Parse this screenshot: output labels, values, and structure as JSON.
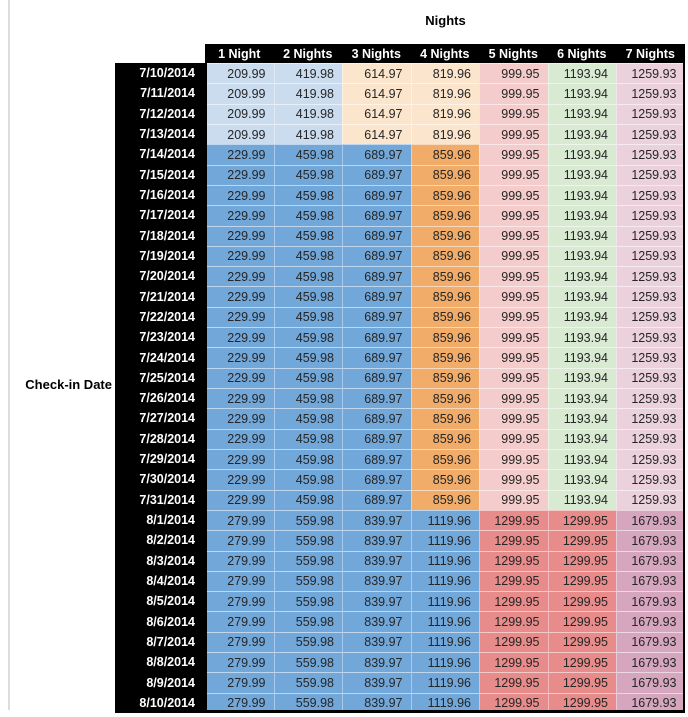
{
  "chart_data": {
    "type": "table",
    "title": "Nights",
    "row_axis_label": "Check-in Date",
    "columns": [
      "1 Night",
      "2 Nights",
      "3 Nights",
      "4 Nights",
      "5 Nights",
      "6 Nights",
      "7 Nights"
    ],
    "header_bg": "#000000",
    "header_text_color": "#ffffff",
    "value_text_color": "#262626",
    "gridline_color": "#dcdcdc",
    "palette": {
      "lb": "#cadcee",
      "mb": "#72a7da",
      "lo": "#fce5cd",
      "mo": "#f2ac69",
      "lr": "#f4cccc",
      "mr": "#e88b8b",
      "lg": "#d9ead3",
      "lp": "#ead1dc",
      "mp": "#d5a6bd"
    },
    "rows": [
      {
        "date": "7/10/2014",
        "values": [
          "209.99",
          "419.98",
          "614.97",
          "819.96",
          "999.95",
          "1193.94",
          "1259.93"
        ],
        "colors": [
          "lb",
          "lb",
          "lo",
          "lo",
          "lr",
          "lg",
          "lp"
        ]
      },
      {
        "date": "7/11/2014",
        "values": [
          "209.99",
          "419.98",
          "614.97",
          "819.96",
          "999.95",
          "1193.94",
          "1259.93"
        ],
        "colors": [
          "lb",
          "lb",
          "lo",
          "lo",
          "lr",
          "lg",
          "lp"
        ]
      },
      {
        "date": "7/12/2014",
        "values": [
          "209.99",
          "419.98",
          "614.97",
          "819.96",
          "999.95",
          "1193.94",
          "1259.93"
        ],
        "colors": [
          "lb",
          "lb",
          "lo",
          "lo",
          "lr",
          "lg",
          "lp"
        ]
      },
      {
        "date": "7/13/2014",
        "values": [
          "209.99",
          "419.98",
          "614.97",
          "819.96",
          "999.95",
          "1193.94",
          "1259.93"
        ],
        "colors": [
          "lb",
          "lb",
          "lo",
          "lo",
          "lr",
          "lg",
          "lp"
        ]
      },
      {
        "date": "7/14/2014",
        "values": [
          "229.99",
          "459.98",
          "689.97",
          "859.96",
          "999.95",
          "1193.94",
          "1259.93"
        ],
        "colors": [
          "mb",
          "mb",
          "mb",
          "mo",
          "lr",
          "lg",
          "lp"
        ]
      },
      {
        "date": "7/15/2014",
        "values": [
          "229.99",
          "459.98",
          "689.97",
          "859.96",
          "999.95",
          "1193.94",
          "1259.93"
        ],
        "colors": [
          "mb",
          "mb",
          "mb",
          "mo",
          "lr",
          "lg",
          "lp"
        ]
      },
      {
        "date": "7/16/2014",
        "values": [
          "229.99",
          "459.98",
          "689.97",
          "859.96",
          "999.95",
          "1193.94",
          "1259.93"
        ],
        "colors": [
          "mb",
          "mb",
          "mb",
          "mo",
          "lr",
          "lg",
          "lp"
        ]
      },
      {
        "date": "7/17/2014",
        "values": [
          "229.99",
          "459.98",
          "689.97",
          "859.96",
          "999.95",
          "1193.94",
          "1259.93"
        ],
        "colors": [
          "mb",
          "mb",
          "mb",
          "mo",
          "lr",
          "lg",
          "lp"
        ]
      },
      {
        "date": "7/18/2014",
        "values": [
          "229.99",
          "459.98",
          "689.97",
          "859.96",
          "999.95",
          "1193.94",
          "1259.93"
        ],
        "colors": [
          "mb",
          "mb",
          "mb",
          "mo",
          "lr",
          "lg",
          "lp"
        ]
      },
      {
        "date": "7/19/2014",
        "values": [
          "229.99",
          "459.98",
          "689.97",
          "859.96",
          "999.95",
          "1193.94",
          "1259.93"
        ],
        "colors": [
          "mb",
          "mb",
          "mb",
          "mo",
          "lr",
          "lg",
          "lp"
        ]
      },
      {
        "date": "7/20/2014",
        "values": [
          "229.99",
          "459.98",
          "689.97",
          "859.96",
          "999.95",
          "1193.94",
          "1259.93"
        ],
        "colors": [
          "mb",
          "mb",
          "mb",
          "mo",
          "lr",
          "lg",
          "lp"
        ]
      },
      {
        "date": "7/21/2014",
        "values": [
          "229.99",
          "459.98",
          "689.97",
          "859.96",
          "999.95",
          "1193.94",
          "1259.93"
        ],
        "colors": [
          "mb",
          "mb",
          "mb",
          "mo",
          "lr",
          "lg",
          "lp"
        ]
      },
      {
        "date": "7/22/2014",
        "values": [
          "229.99",
          "459.98",
          "689.97",
          "859.96",
          "999.95",
          "1193.94",
          "1259.93"
        ],
        "colors": [
          "mb",
          "mb",
          "mb",
          "mo",
          "lr",
          "lg",
          "lp"
        ]
      },
      {
        "date": "7/23/2014",
        "values": [
          "229.99",
          "459.98",
          "689.97",
          "859.96",
          "999.95",
          "1193.94",
          "1259.93"
        ],
        "colors": [
          "mb",
          "mb",
          "mb",
          "mo",
          "lr",
          "lg",
          "lp"
        ]
      },
      {
        "date": "7/24/2014",
        "values": [
          "229.99",
          "459.98",
          "689.97",
          "859.96",
          "999.95",
          "1193.94",
          "1259.93"
        ],
        "colors": [
          "mb",
          "mb",
          "mb",
          "mo",
          "lr",
          "lg",
          "lp"
        ]
      },
      {
        "date": "7/25/2014",
        "values": [
          "229.99",
          "459.98",
          "689.97",
          "859.96",
          "999.95",
          "1193.94",
          "1259.93"
        ],
        "colors": [
          "mb",
          "mb",
          "mb",
          "mo",
          "lr",
          "lg",
          "lp"
        ]
      },
      {
        "date": "7/26/2014",
        "values": [
          "229.99",
          "459.98",
          "689.97",
          "859.96",
          "999.95",
          "1193.94",
          "1259.93"
        ],
        "colors": [
          "mb",
          "mb",
          "mb",
          "mo",
          "lr",
          "lg",
          "lp"
        ]
      },
      {
        "date": "7/27/2014",
        "values": [
          "229.99",
          "459.98",
          "689.97",
          "859.96",
          "999.95",
          "1193.94",
          "1259.93"
        ],
        "colors": [
          "mb",
          "mb",
          "mb",
          "mo",
          "lr",
          "lg",
          "lp"
        ]
      },
      {
        "date": "7/28/2014",
        "values": [
          "229.99",
          "459.98",
          "689.97",
          "859.96",
          "999.95",
          "1193.94",
          "1259.93"
        ],
        "colors": [
          "mb",
          "mb",
          "mb",
          "mo",
          "lr",
          "lg",
          "lp"
        ]
      },
      {
        "date": "7/29/2014",
        "values": [
          "229.99",
          "459.98",
          "689.97",
          "859.96",
          "999.95",
          "1193.94",
          "1259.93"
        ],
        "colors": [
          "mb",
          "mb",
          "mb",
          "mo",
          "lr",
          "lg",
          "lp"
        ]
      },
      {
        "date": "7/30/2014",
        "values": [
          "229.99",
          "459.98",
          "689.97",
          "859.96",
          "999.95",
          "1193.94",
          "1259.93"
        ],
        "colors": [
          "mb",
          "mb",
          "mb",
          "mo",
          "lr",
          "lg",
          "lp"
        ]
      },
      {
        "date": "7/31/2014",
        "values": [
          "229.99",
          "459.98",
          "689.97",
          "859.96",
          "999.95",
          "1193.94",
          "1259.93"
        ],
        "colors": [
          "mb",
          "mb",
          "mb",
          "mo",
          "lr",
          "lg",
          "lp"
        ]
      },
      {
        "date": "8/1/2014",
        "values": [
          "279.99",
          "559.98",
          "839.97",
          "1119.96",
          "1299.95",
          "1299.95",
          "1679.93"
        ],
        "colors": [
          "mb",
          "mb",
          "mb",
          "mb",
          "mr",
          "mr",
          "mp"
        ]
      },
      {
        "date": "8/2/2014",
        "values": [
          "279.99",
          "559.98",
          "839.97",
          "1119.96",
          "1299.95",
          "1299.95",
          "1679.93"
        ],
        "colors": [
          "mb",
          "mb",
          "mb",
          "mb",
          "mr",
          "mr",
          "mp"
        ]
      },
      {
        "date": "8/3/2014",
        "values": [
          "279.99",
          "559.98",
          "839.97",
          "1119.96",
          "1299.95",
          "1299.95",
          "1679.93"
        ],
        "colors": [
          "mb",
          "mb",
          "mb",
          "mb",
          "mr",
          "mr",
          "mp"
        ]
      },
      {
        "date": "8/4/2014",
        "values": [
          "279.99",
          "559.98",
          "839.97",
          "1119.96",
          "1299.95",
          "1299.95",
          "1679.93"
        ],
        "colors": [
          "mb",
          "mb",
          "mb",
          "mb",
          "mr",
          "mr",
          "mp"
        ]
      },
      {
        "date": "8/5/2014",
        "values": [
          "279.99",
          "559.98",
          "839.97",
          "1119.96",
          "1299.95",
          "1299.95",
          "1679.93"
        ],
        "colors": [
          "mb",
          "mb",
          "mb",
          "mb",
          "mr",
          "mr",
          "mp"
        ]
      },
      {
        "date": "8/6/2014",
        "values": [
          "279.99",
          "559.98",
          "839.97",
          "1119.96",
          "1299.95",
          "1299.95",
          "1679.93"
        ],
        "colors": [
          "mb",
          "mb",
          "mb",
          "mb",
          "mr",
          "mr",
          "mp"
        ]
      },
      {
        "date": "8/7/2014",
        "values": [
          "279.99",
          "559.98",
          "839.97",
          "1119.96",
          "1299.95",
          "1299.95",
          "1679.93"
        ],
        "colors": [
          "mb",
          "mb",
          "mb",
          "mb",
          "mr",
          "mr",
          "mp"
        ]
      },
      {
        "date": "8/8/2014",
        "values": [
          "279.99",
          "559.98",
          "839.97",
          "1119.96",
          "1299.95",
          "1299.95",
          "1679.93"
        ],
        "colors": [
          "mb",
          "mb",
          "mb",
          "mb",
          "mr",
          "mr",
          "mp"
        ]
      },
      {
        "date": "8/9/2014",
        "values": [
          "279.99",
          "559.98",
          "839.97",
          "1119.96",
          "1299.95",
          "1299.95",
          "1679.93"
        ],
        "colors": [
          "mb",
          "mb",
          "mb",
          "mb",
          "mr",
          "mr",
          "mp"
        ]
      },
      {
        "date": "8/10/2014",
        "values": [
          "279.99",
          "559.98",
          "839.97",
          "1119.96",
          "1299.95",
          "1299.95",
          "1679.93"
        ],
        "colors": [
          "mb",
          "mb",
          "mb",
          "mb",
          "mr",
          "mr",
          "mp"
        ]
      }
    ]
  }
}
